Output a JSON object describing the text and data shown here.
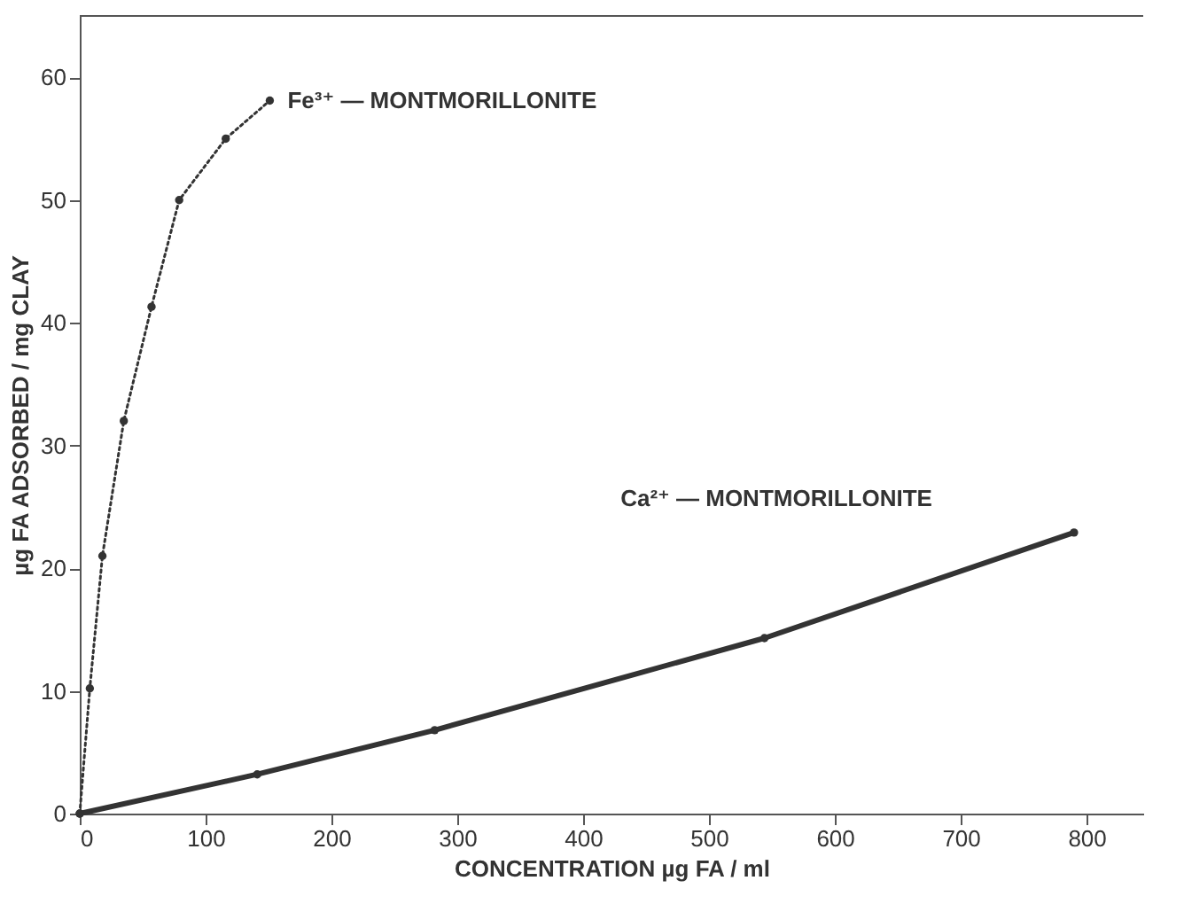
{
  "chart_data": {
    "type": "line",
    "xlabel": "CONCENTRATION    µg  FA / ml",
    "ylabel": "µg  FA  ADSORBED / mg  CLAY",
    "xlim": [
      0,
      845
    ],
    "ylim": [
      0,
      65
    ],
    "xticks": [
      0,
      100,
      200,
      300,
      400,
      500,
      600,
      700,
      800
    ],
    "yticks": [
      0,
      10,
      20,
      30,
      40,
      50,
      60
    ],
    "marker": "circle",
    "series": [
      {
        "name": "Fe³⁺ — MONTMORILLONITE",
        "color": "#333333",
        "line_style": "dotted",
        "x": [
          0,
          8,
          18,
          35,
          57,
          79,
          116,
          151
        ],
        "values": [
          0,
          10.2,
          21,
          32,
          41.3,
          50,
          55,
          58.1
        ]
      },
      {
        "name": "Ca²⁺ — MONTMORILLONITE",
        "color": "#333333",
        "line_style": "solid",
        "x": [
          0,
          141,
          282,
          544,
          790
        ],
        "values": [
          0,
          3.2,
          6.8,
          14.3,
          22.9
        ]
      }
    ]
  }
}
